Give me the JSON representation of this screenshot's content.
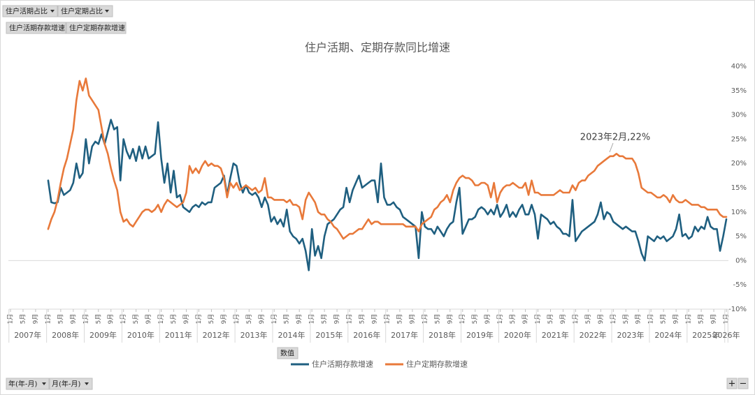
{
  "chart_data": {
    "type": "line",
    "title": "住户活期、定期存款同比增速",
    "annotation": "2023年2月,22%",
    "years": [
      "2007年",
      "2008年",
      "2009年",
      "2010年",
      "2011年",
      "2012年",
      "2013年",
      "2014年",
      "2015年",
      "2016年",
      "2017年",
      "2018年",
      "2019年",
      "2020年",
      "2021年",
      "2022年",
      "2023年",
      "2024年",
      "2025年",
      "2026年"
    ],
    "categories": [
      "1月",
      null,
      null,
      null,
      "5月",
      null,
      null,
      null,
      "9月",
      null,
      null,
      null,
      "1月",
      null,
      null,
      null,
      "5月",
      null,
      null,
      null,
      "9月",
      null,
      null,
      null,
      "1月",
      null,
      null,
      null,
      "5月",
      null,
      null,
      null,
      "9月",
      null,
      null,
      null,
      "1月",
      null,
      null,
      null,
      "5月",
      null,
      null,
      null,
      "9月",
      null,
      null,
      null,
      "1月",
      null,
      null,
      null,
      "5月",
      null,
      null,
      null,
      "9月",
      null,
      null,
      null,
      "1月",
      null,
      null,
      null,
      "5月",
      null,
      null,
      null,
      "9月",
      null,
      null,
      null,
      "1月",
      null,
      null,
      null,
      "5月",
      null,
      null,
      null,
      "9月",
      null,
      null,
      null,
      "1月",
      null,
      null,
      null,
      "5月",
      null,
      null,
      null,
      "9月",
      null,
      null,
      null,
      "1月",
      null,
      null,
      null,
      "5月",
      null,
      null,
      null,
      "9月",
      null,
      null,
      null,
      "1月",
      null,
      null,
      null,
      "5月",
      null,
      null,
      null,
      "9月",
      null,
      null,
      null,
      "1月",
      null,
      null,
      null,
      "5月",
      null,
      null,
      null,
      "9月",
      null,
      null,
      null,
      "1月",
      null,
      null,
      null,
      "5月",
      null,
      null,
      null,
      "9月",
      null,
      null,
      null,
      "1月",
      null,
      null,
      null,
      "5月",
      null,
      null,
      null,
      "9月",
      null,
      null,
      null,
      "1月",
      null,
      null,
      null,
      "5月",
      null,
      null,
      null,
      "9月",
      null,
      null,
      null,
      "1月",
      null,
      null,
      null,
      "5月",
      null,
      null,
      null,
      "9月",
      null,
      null,
      null,
      "1月",
      null,
      null,
      null,
      "5月",
      null,
      null,
      null,
      "9月",
      null,
      null,
      null,
      "1月",
      null,
      null,
      null,
      "5月",
      null,
      null,
      null,
      "9月",
      null,
      null,
      null,
      "1月",
      null,
      null,
      null,
      "5月",
      null,
      null,
      null,
      "9月",
      null,
      null,
      null,
      "1月",
      null,
      null,
      null,
      "5月",
      null,
      null,
      null,
      "9月",
      null,
      null,
      null,
      "1月"
    ],
    "series": [
      {
        "name": "住户活期存款增速",
        "color": "#1f5f80",
        "values": [
          null,
          null,
          null,
          null,
          null,
          null,
          null,
          null,
          null,
          null,
          null,
          null,
          16.5,
          12,
          11.8,
          12,
          15,
          13.5,
          14,
          14.5,
          16,
          20,
          17,
          18,
          25,
          20,
          23.5,
          24.5,
          24,
          26,
          24,
          26.5,
          29,
          27,
          27.5,
          16.5,
          25,
          22.5,
          21,
          23,
          20.5,
          23.5,
          21,
          23.5,
          21,
          21.5,
          22,
          28.5,
          21,
          16,
          20,
          14,
          18.5,
          13,
          13.5,
          11,
          10.5,
          10,
          11,
          11.5,
          11,
          12,
          11.5,
          12,
          12,
          15,
          15.5,
          16,
          17.5,
          13.5,
          17,
          20,
          19.5,
          16,
          14,
          15.5,
          14,
          13.5,
          14,
          13,
          11,
          13,
          11.5,
          8,
          9,
          7.5,
          8.5,
          7,
          10.5,
          6,
          5,
          4.5,
          3.5,
          4.5,
          2,
          -2,
          6.5,
          1,
          3,
          0.5,
          5,
          7.5,
          8,
          8.5,
          9.5,
          10.5,
          11,
          15,
          12,
          14.5,
          16,
          17.5,
          15,
          15.5,
          16,
          16.5,
          16.5,
          12,
          20,
          13,
          11.5,
          11.5,
          12,
          11,
          10.5,
          9,
          8.5,
          8,
          7.5,
          7,
          0.5,
          10,
          7,
          6.5,
          6.5,
          5.5,
          7,
          6,
          5,
          6.5,
          7.5,
          8,
          12,
          15,
          5.5,
          7,
          8.5,
          8.5,
          9,
          10.5,
          11,
          10.5,
          9.5,
          10.5,
          9.5,
          11.5,
          9,
          10,
          11.5,
          9,
          10,
          9,
          10.5,
          11.5,
          9.5,
          9.5,
          11.5,
          9.5,
          4.5,
          9.5,
          9,
          8.5,
          7.5,
          8,
          7,
          6.5,
          5.5,
          5.5,
          5,
          12.5,
          4,
          5,
          6,
          6.5,
          7,
          7.5,
          8,
          9.5,
          12,
          8.5,
          10,
          9.5,
          8,
          7.5,
          7,
          6.5,
          7,
          6.5,
          6,
          6,
          4,
          1.5,
          0,
          5,
          4.5,
          4,
          5,
          4.5,
          5,
          4,
          4.5,
          5,
          6.5,
          9.5,
          5,
          5.5,
          4.5,
          5,
          7,
          6,
          7,
          6.5,
          9,
          7,
          6.5,
          6.5,
          2,
          5,
          8.5
        ]
      },
      {
        "name": "住户定期存款增速",
        "color": "#e8793a",
        "values": [
          null,
          null,
          null,
          null,
          null,
          null,
          null,
          null,
          null,
          null,
          null,
          null,
          6.5,
          8.5,
          10,
          12.5,
          16,
          19,
          21,
          24,
          27,
          33,
          37,
          35,
          37.5,
          34,
          33,
          32,
          31,
          27.5,
          24,
          22,
          19,
          16.5,
          14.5,
          10,
          8,
          8.5,
          7.5,
          7,
          8,
          9,
          10,
          10.5,
          10.5,
          10,
          10.5,
          11.5,
          10,
          11.5,
          12.5,
          12,
          11.5,
          11,
          11.5,
          12,
          14,
          19.5,
          18,
          19,
          18,
          19.5,
          20.5,
          19.5,
          20,
          19.5,
          19.5,
          19,
          17,
          13,
          16,
          15,
          16,
          14.5,
          15,
          15.5,
          15,
          14.5,
          15,
          14,
          14.5,
          17,
          13,
          13,
          12.5,
          12.5,
          12.5,
          12.5,
          12,
          12.5,
          11.5,
          11.5,
          11,
          8.5,
          12.5,
          14,
          13,
          12,
          10,
          9.5,
          9.5,
          8.5,
          8,
          7,
          6.5,
          5.5,
          4.5,
          5,
          5.5,
          5.5,
          6,
          6.5,
          6.5,
          7.5,
          8.5,
          7.5,
          8,
          8,
          7.5,
          7.5,
          7.5,
          7.5,
          7.5,
          7.5,
          7.5,
          7.5,
          7,
          7,
          7,
          7,
          6,
          7.5,
          8,
          8.5,
          9,
          10.5,
          11,
          12,
          12.5,
          13.5,
          12,
          14.5,
          16,
          17,
          17.5,
          17,
          17,
          16.5,
          15.5,
          15.5,
          16,
          16,
          15.5,
          13,
          16,
          12,
          14,
          15,
          15.5,
          15.5,
          16,
          15.5,
          15,
          15,
          16,
          13.5,
          16.5,
          14,
          14,
          13.5,
          13.5,
          13.5,
          13.5,
          13.5,
          14,
          14.5,
          14,
          14,
          14,
          15.5,
          14.5,
          16,
          16.5,
          16.5,
          17.5,
          18,
          18.5,
          19.5,
          20,
          20.5,
          21,
          21.5,
          21.5,
          22,
          21.5,
          21.5,
          21,
          21,
          21,
          20,
          18,
          15,
          14.5,
          14,
          14,
          13.5,
          13,
          13,
          13.5,
          13,
          12,
          13.5,
          12.5,
          12,
          12,
          12.5,
          12,
          11.5,
          11.5,
          11.5,
          11,
          11,
          10.5,
          10.5,
          10.5,
          10.5,
          9.5,
          9,
          9
        ]
      }
    ],
    "ylim": [
      -10,
      40
    ],
    "yticks": [
      {
        "value": 40,
        "label": "40%"
      },
      {
        "value": 35,
        "label": "35%"
      },
      {
        "value": 30,
        "label": "30%"
      },
      {
        "value": 25,
        "label": "25%"
      },
      {
        "value": 20,
        "label": "20%"
      },
      {
        "value": 15,
        "label": "15%"
      },
      {
        "value": 10,
        "label": "10%"
      },
      {
        "value": 5,
        "label": "5%"
      },
      {
        "value": 0,
        "label": "0%"
      },
      {
        "value": -5,
        "label": "-5%"
      },
      {
        "value": -10,
        "label": "-10%"
      }
    ],
    "grid": false
  },
  "controls": {
    "filters": [
      "住户活期占比",
      "住户定期占比"
    ],
    "fields": [
      "住户活期存款增速",
      "住户定期存款增速"
    ],
    "values_button": "数值",
    "axis_fields": [
      "年(年-月)",
      "月(年-月)"
    ],
    "expand": "+",
    "collapse": "−"
  }
}
